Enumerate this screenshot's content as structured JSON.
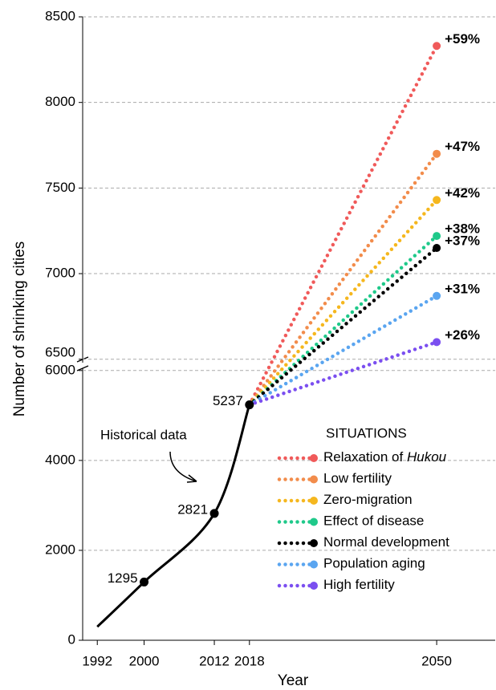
{
  "chart_data": {
    "type": "line",
    "xlabel": "Year",
    "ylabel": "Number of shrinking cities",
    "xlim": [
      1989.5,
      2060
    ],
    "xticks": [
      1992,
      2000,
      2012,
      2018,
      2050
    ],
    "ylim": [
      0,
      6050
    ],
    "yticks": [
      0,
      2000,
      4000,
      6000
    ],
    "ylim_upper": [
      6480,
      8500
    ],
    "yticks_upper": [
      6500,
      7000,
      7500,
      8000,
      8500
    ],
    "grid": true,
    "historical": {
      "name": "Historical data",
      "color": "#000000",
      "x": [
        1992,
        2000,
        2012,
        2018
      ],
      "values": [
        300,
        1295,
        2821,
        5237
      ],
      "markers": [
        false,
        true,
        true,
        true
      ]
    },
    "legend_title": "SITUATIONS",
    "series": [
      {
        "name": "Relaxation of",
        "name_italic": "Hukou",
        "color": "#f05a5a",
        "x": [
          2018,
          2050
        ],
        "values": [
          5237,
          8330
        ],
        "label": "+59%"
      },
      {
        "name": "Low fertility",
        "color": "#f28c4b",
        "x": [
          2018,
          2050
        ],
        "values": [
          5237,
          7700
        ],
        "label": "+47%"
      },
      {
        "name": "Zero-migration",
        "color": "#f5b71e",
        "x": [
          2018,
          2050
        ],
        "values": [
          5237,
          7430
        ],
        "label": "+42%"
      },
      {
        "name": "Effect of disease",
        "color": "#1fc98a",
        "x": [
          2018,
          2050
        ],
        "values": [
          5237,
          7220
        ],
        "label": "+38%"
      },
      {
        "name": "Normal development",
        "color": "#000000",
        "x": [
          2018,
          2050
        ],
        "values": [
          5237,
          7150
        ],
        "label": "+37%"
      },
      {
        "name": "Population aging",
        "color": "#5aa5f0",
        "x": [
          2018,
          2050
        ],
        "values": [
          5237,
          6870
        ],
        "label": "+31%"
      },
      {
        "name": "High fertility",
        "color": "#7b4ff0",
        "x": [
          2018,
          2050
        ],
        "values": [
          5237,
          6600
        ],
        "label": "+26%"
      }
    ]
  }
}
